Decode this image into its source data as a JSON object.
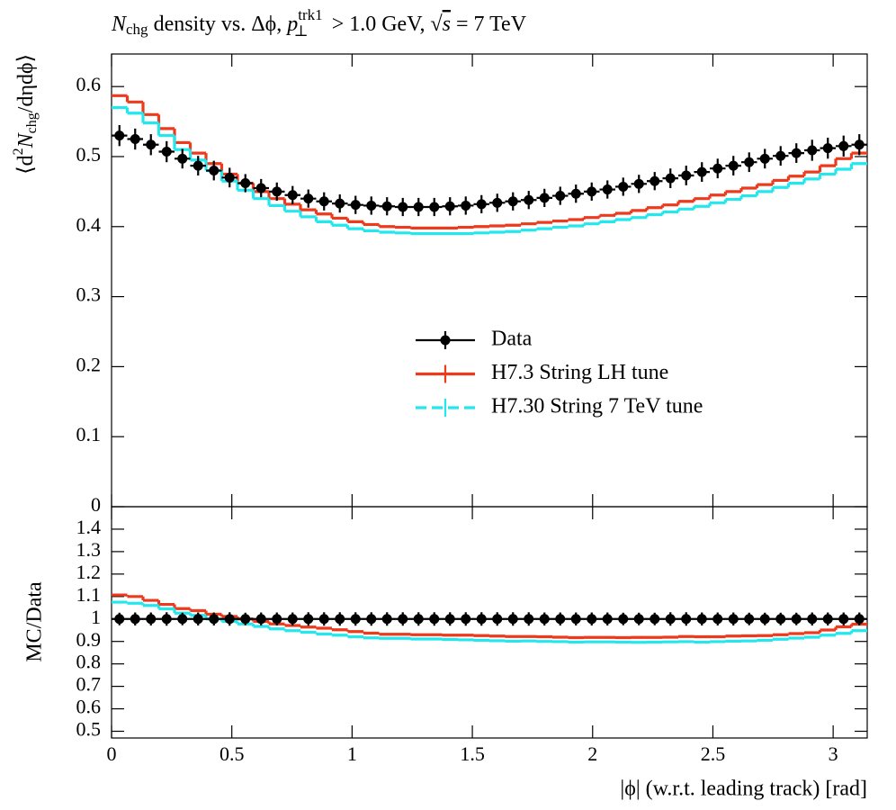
{
  "chart_data": [
    {
      "type": "histogram",
      "title": [
        "N",
        "chg",
        " density vs. Δϕ, ",
        "p",
        "trk1",
        "⊥",
        " > 1.0 GeV, ",
        "√",
        "s",
        " = 7 TeV"
      ],
      "ylabel": [
        "⟨d",
        "2",
        "N",
        "chg",
        "/dηdϕ⟩"
      ],
      "xlim": [
        0,
        3.1416
      ],
      "ylim": [
        0,
        0.6465
      ],
      "yticks": [
        0,
        0.1,
        0.2,
        0.3,
        0.4,
        0.5,
        0.6
      ],
      "legend": "center",
      "bins": [
        0,
        0.0654,
        0.1309,
        0.1963,
        0.2618,
        0.3272,
        0.3927,
        0.4581,
        0.5236,
        0.589,
        0.6545,
        0.72,
        0.7854,
        0.8508,
        0.9163,
        0.9817,
        1.0472,
        1.1126,
        1.1781,
        1.2435,
        1.309,
        1.3744,
        1.4399,
        1.5053,
        1.5708,
        1.6362,
        1.7017,
        1.7671,
        1.8326,
        1.898,
        1.9635,
        2.0289,
        2.0944,
        2.1598,
        2.2253,
        2.2907,
        2.3562,
        2.4216,
        2.4871,
        2.5525,
        2.618,
        2.6834,
        2.7489,
        2.8143,
        2.8798,
        2.9452,
        3.0107,
        3.0761,
        3.1416
      ],
      "series": [
        {
          "name": "Data",
          "style": "points",
          "color": "#000000",
          "values": [
            0.53,
            0.525,
            0.517,
            0.507,
            0.497,
            0.487,
            0.48,
            0.47,
            0.462,
            0.455,
            0.45,
            0.445,
            0.44,
            0.436,
            0.433,
            0.431,
            0.43,
            0.429,
            0.428,
            0.428,
            0.428,
            0.429,
            0.43,
            0.432,
            0.434,
            0.436,
            0.438,
            0.441,
            0.444,
            0.447,
            0.45,
            0.453,
            0.457,
            0.461,
            0.465,
            0.469,
            0.473,
            0.478,
            0.483,
            0.487,
            0.492,
            0.497,
            0.501,
            0.505,
            0.509,
            0.512,
            0.515,
            0.517
          ],
          "errors": [
            0.015,
            0.015,
            0.015,
            0.015,
            0.014,
            0.014,
            0.014,
            0.014,
            0.013,
            0.013,
            0.013,
            0.013,
            0.013,
            0.013,
            0.013,
            0.013,
            0.013,
            0.013,
            0.013,
            0.013,
            0.013,
            0.013,
            0.013,
            0.013,
            0.013,
            0.013,
            0.013,
            0.013,
            0.013,
            0.013,
            0.013,
            0.013,
            0.013,
            0.013,
            0.013,
            0.014,
            0.014,
            0.014,
            0.014,
            0.014,
            0.014,
            0.014,
            0.014,
            0.014,
            0.015,
            0.015,
            0.015,
            0.015
          ]
        },
        {
          "name": "H7.3 String LH tune",
          "style": "step",
          "color": "#ee3a1c",
          "values": [
            0.587,
            0.578,
            0.56,
            0.54,
            0.52,
            0.505,
            0.49,
            0.475,
            0.462,
            0.45,
            0.44,
            0.432,
            0.424,
            0.418,
            0.412,
            0.407,
            0.403,
            0.4,
            0.399,
            0.398,
            0.398,
            0.398,
            0.399,
            0.4,
            0.401,
            0.402,
            0.404,
            0.406,
            0.408,
            0.41,
            0.413,
            0.416,
            0.419,
            0.423,
            0.427,
            0.431,
            0.436,
            0.44,
            0.445,
            0.45,
            0.455,
            0.46,
            0.466,
            0.472,
            0.478,
            0.487,
            0.497,
            0.505
          ]
        },
        {
          "name": "H7.30 String 7 TeV tune",
          "style": "step",
          "color": "#22e8ee",
          "values": [
            0.57,
            0.562,
            0.548,
            0.53,
            0.51,
            0.495,
            0.48,
            0.465,
            0.452,
            0.44,
            0.43,
            0.422,
            0.414,
            0.407,
            0.402,
            0.397,
            0.394,
            0.392,
            0.391,
            0.39,
            0.39,
            0.39,
            0.39,
            0.391,
            0.392,
            0.393,
            0.395,
            0.397,
            0.399,
            0.401,
            0.404,
            0.407,
            0.41,
            0.413,
            0.417,
            0.421,
            0.425,
            0.429,
            0.434,
            0.439,
            0.444,
            0.45,
            0.456,
            0.462,
            0.468,
            0.475,
            0.482,
            0.49
          ]
        }
      ]
    },
    {
      "type": "histogram",
      "ylabel": [
        "MC/Data"
      ],
      "xlabel": "|ϕ| (w.r.t. leading track) [rad]",
      "xlim": [
        0,
        3.1416
      ],
      "xticks": [
        0,
        0.5,
        1,
        1.5,
        2,
        2.5,
        3
      ],
      "ylim": [
        0.47,
        1.5
      ],
      "yticks": [
        0.5,
        0.6,
        0.7,
        0.8,
        0.9,
        1,
        1.1,
        1.2,
        1.3,
        1.4
      ],
      "bins": [
        0,
        0.0654,
        0.1309,
        0.1963,
        0.2618,
        0.3272,
        0.3927,
        0.4581,
        0.5236,
        0.589,
        0.6545,
        0.72,
        0.7854,
        0.8508,
        0.9163,
        0.9817,
        1.0472,
        1.1126,
        1.1781,
        1.2435,
        1.309,
        1.3744,
        1.4399,
        1.5053,
        1.5708,
        1.6362,
        1.7017,
        1.7671,
        1.8326,
        1.898,
        1.9635,
        2.0289,
        2.0944,
        2.1598,
        2.2253,
        2.2907,
        2.3562,
        2.4216,
        2.4871,
        2.5525,
        2.618,
        2.6834,
        2.7489,
        2.8143,
        2.8798,
        2.9452,
        3.0107,
        3.0761,
        3.1416
      ],
      "series": [
        {
          "style": "points",
          "color": "#000000",
          "values": [
            1,
            1,
            1,
            1,
            1,
            1,
            1,
            1,
            1,
            1,
            1,
            1,
            1,
            1,
            1,
            1,
            1,
            1,
            1,
            1,
            1,
            1,
            1,
            1,
            1,
            1,
            1,
            1,
            1,
            1,
            1,
            1,
            1,
            1,
            1,
            1,
            1,
            1,
            1,
            1,
            1,
            1,
            1,
            1,
            1,
            1,
            1,
            1
          ],
          "errors": [
            0.028,
            0.029,
            0.029,
            0.03,
            0.028,
            0.029,
            0.029,
            0.03,
            0.028,
            0.029,
            0.029,
            0.029,
            0.03,
            0.03,
            0.03,
            0.03,
            0.03,
            0.03,
            0.03,
            0.03,
            0.03,
            0.03,
            0.03,
            0.03,
            0.03,
            0.03,
            0.03,
            0.029,
            0.029,
            0.029,
            0.029,
            0.029,
            0.028,
            0.028,
            0.028,
            0.03,
            0.03,
            0.029,
            0.029,
            0.029,
            0.028,
            0.028,
            0.028,
            0.028,
            0.029,
            0.029,
            0.029,
            0.029
          ]
        },
        {
          "style": "step",
          "color": "#ee3a1c",
          "values": [
            1.107,
            1.1,
            1.083,
            1.065,
            1.046,
            1.037,
            1.021,
            1.011,
            1.0,
            0.989,
            0.978,
            0.971,
            0.964,
            0.959,
            0.952,
            0.944,
            0.937,
            0.932,
            0.932,
            0.93,
            0.93,
            0.928,
            0.928,
            0.926,
            0.924,
            0.922,
            0.922,
            0.921,
            0.919,
            0.917,
            0.918,
            0.918,
            0.917,
            0.918,
            0.918,
            0.919,
            0.922,
            0.921,
            0.921,
            0.924,
            0.925,
            0.926,
            0.93,
            0.935,
            0.939,
            0.951,
            0.965,
            0.977
          ]
        },
        {
          "style": "step",
          "color": "#22e8ee",
          "values": [
            1.075,
            1.07,
            1.06,
            1.045,
            1.026,
            1.016,
            1.0,
            0.989,
            0.978,
            0.967,
            0.956,
            0.948,
            0.941,
            0.933,
            0.928,
            0.921,
            0.916,
            0.914,
            0.914,
            0.911,
            0.911,
            0.909,
            0.907,
            0.905,
            0.903,
            0.901,
            0.902,
            0.9,
            0.899,
            0.897,
            0.898,
            0.898,
            0.897,
            0.896,
            0.897,
            0.898,
            0.899,
            0.897,
            0.899,
            0.901,
            0.902,
            0.905,
            0.91,
            0.915,
            0.919,
            0.928,
            0.936,
            0.948
          ]
        }
      ]
    }
  ]
}
